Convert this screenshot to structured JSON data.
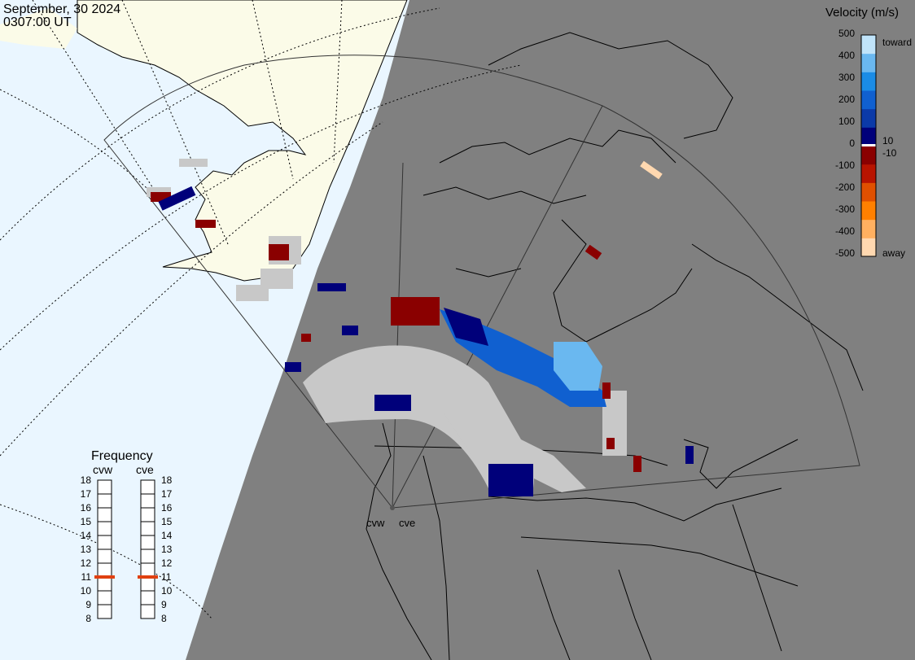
{
  "header": {
    "date": "September, 30 2024",
    "time": "0307:00 UT"
  },
  "colorbar": {
    "title": "Velocity (m/s)",
    "ticks": [
      "500",
      "400",
      "300",
      "200",
      "100",
      "10",
      "0",
      "-10",
      "-100",
      "-200",
      "-300",
      "-400",
      "-500"
    ],
    "toward_label": "toward",
    "away_label": "away",
    "colors": [
      "#ffd8b0",
      "#ffb060",
      "#ff8000",
      "#e05000",
      "#b81400",
      "#8a0000",
      "#00007a",
      "#0b3aa8",
      "#1060d0",
      "#1a8ce6",
      "#6ab8f0",
      "#c0e4fa"
    ]
  },
  "frequency_panel": {
    "title": "Frequency",
    "radars": [
      "cvw",
      "cve"
    ],
    "scale_labels": [
      "18",
      "17",
      "16",
      "15",
      "14",
      "13",
      "12",
      "11",
      "10",
      "9",
      "8"
    ],
    "cvw_mhz": 11,
    "cve_mhz": 11,
    "marker_color": "#e04010"
  },
  "map": {
    "site_labels": [
      "cvw",
      "cve"
    ],
    "night_color": "#808080",
    "day_ocean_color": "#eaf6ff",
    "day_land_color": "#fbfbe8",
    "ground_scatter_color": "#c8c8c8"
  }
}
